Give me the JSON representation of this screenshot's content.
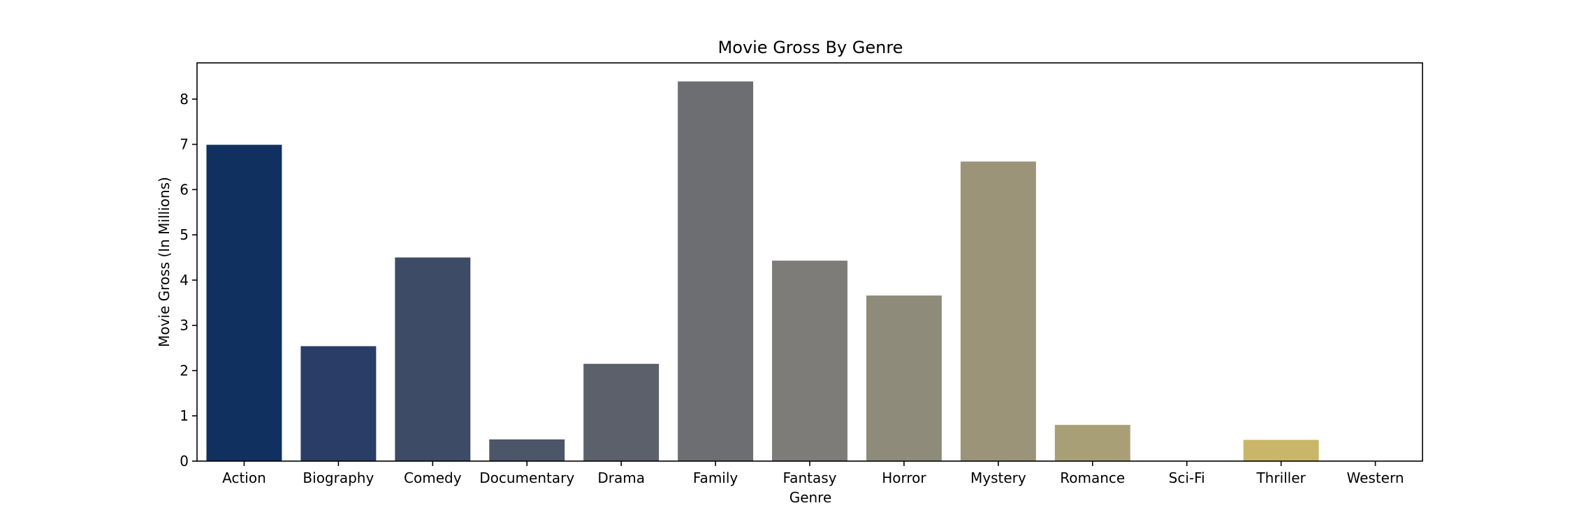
{
  "chart_data": {
    "type": "bar",
    "title": "Movie Gross By Genre",
    "xlabel": "Genre",
    "ylabel": "Movie Gross (In Millions)",
    "categories": [
      "Action",
      "Biography",
      "Comedy",
      "Documentary",
      "Drama",
      "Family",
      "Fantasy",
      "Horror",
      "Mystery",
      "Romance",
      "Sci-Fi",
      "Thriller",
      "Western"
    ],
    "values": [
      6.99,
      2.54,
      4.5,
      0.48,
      2.15,
      8.39,
      4.43,
      3.66,
      6.62,
      0.8,
      0,
      0.47,
      0
    ],
    "colors": [
      "#10305f",
      "#2a3d67",
      "#3e4b66",
      "#4c5669",
      "#5c606b",
      "#6c6e72",
      "#7e7c78",
      "#8f8b7b",
      "#9c9479",
      "#a99f76",
      "#b8ab70",
      "#c9b66a",
      "#d9c266"
    ],
    "ylim": [
      0,
      8.8
    ],
    "yticks": [
      0,
      1,
      2,
      3,
      4,
      5,
      6,
      7,
      8
    ],
    "grid": false,
    "legend": "none"
  }
}
